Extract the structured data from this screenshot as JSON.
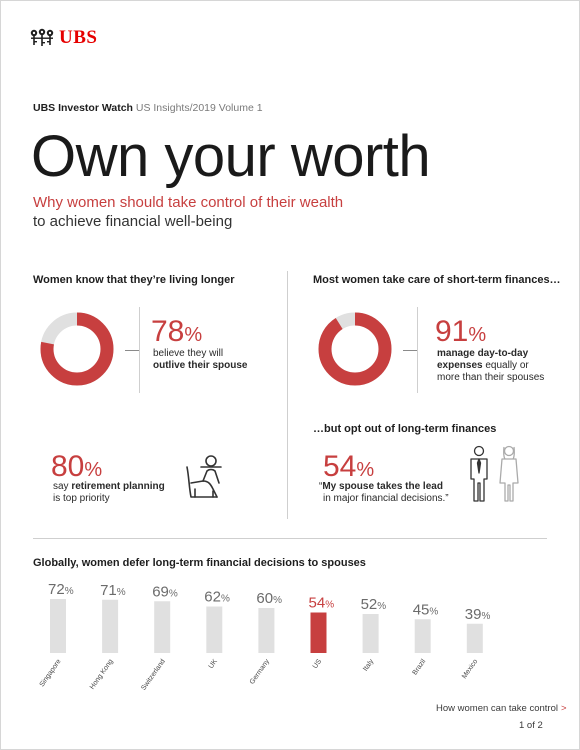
{
  "brand": {
    "name": "UBS",
    "red": "#e60000",
    "accent": "#c73f3f",
    "grey": "#e0e0e0",
    "logo_icon": "crossed-keys-icon"
  },
  "header": {
    "series_bold": "UBS Investor Watch",
    "series_sub": " US Insights",
    "series_rest": "/2019 Volume 1",
    "headline": "Own your worth",
    "subhead_red": "Why women should take control of their wealth",
    "subhead_black": "to achieve financial well-being"
  },
  "left": {
    "title": "Women know that they’re living longer",
    "stat1": {
      "value": 78,
      "value_text": "78",
      "pct": "%",
      "line1": "believe they will",
      "line2_bold": "outlive their spouse"
    },
    "stat2": {
      "value_text": "80",
      "pct": "%",
      "line1_pre": "say ",
      "line1_bold": "retirement planning",
      "line2": "is top priority",
      "icon": "retirement-chair-icon"
    }
  },
  "right": {
    "title": "Most women take care of short-term finances…",
    "stat1": {
      "value": 91,
      "value_text": "91",
      "pct": "%",
      "line1_bold": "manage day-to-day",
      "line2_bold": "expenses",
      "line2_rest": " equally or",
      "line3": "more than their spouses"
    },
    "title2": "…but opt out of long-term finances",
    "stat2": {
      "value_text": "54",
      "pct": "%",
      "quote_open": "“",
      "line1_bold": "My spouse takes the lead",
      "line2": "in major financial decisions.",
      "quote_close": "”",
      "icon": "couple-icon"
    }
  },
  "chart_section": {
    "title": "Globally, women defer long-term financial decisions to spouses"
  },
  "chart_data": {
    "type": "bar",
    "categories": [
      "Singapore",
      "Hong Kong",
      "Switzerland",
      "UK",
      "Germany",
      "US",
      "Italy",
      "Brazil",
      "Mexico"
    ],
    "values": [
      72,
      71,
      69,
      62,
      60,
      54,
      52,
      45,
      39
    ],
    "value_suffix": "%",
    "highlight": "US",
    "colors": {
      "bar": "#e0e0e0",
      "highlight": "#c73f3f",
      "label": "#6b6b6b",
      "highlight_label": "#c73f3f"
    },
    "ylim": [
      0,
      100
    ],
    "title": "Globally, women defer long-term financial decisions to spouses"
  },
  "footer": {
    "link_text": "How women can take control",
    "link_chevron": ">",
    "page": "1 of 2"
  }
}
